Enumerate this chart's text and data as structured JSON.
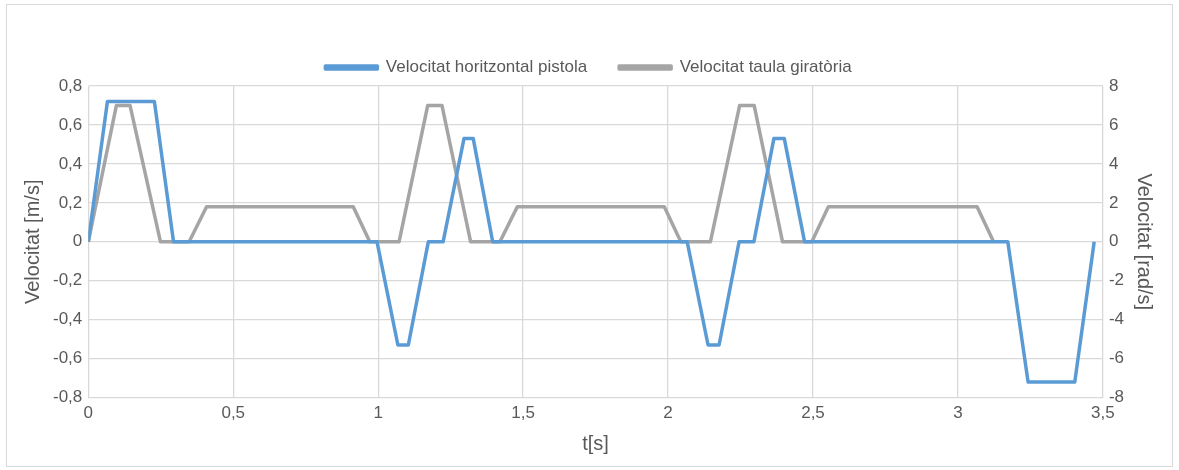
{
  "chart_data": {
    "type": "line",
    "xlabel": "t[s]",
    "ylabel": "Velocitat [m/s]",
    "y2label": "Velocitat [rad/s]",
    "xlim": [
      0,
      3.5
    ],
    "xticks": [
      0,
      {
        "value": 0.5,
        "label": "0,5"
      },
      1,
      {
        "value": 1.5,
        "label": "1,5"
      },
      2,
      {
        "value": 2.5,
        "label": "2,5"
      },
      3,
      {
        "value": 3.5,
        "label": "3,5"
      }
    ],
    "ylim": [
      -0.8,
      0.8
    ],
    "yticks": [
      {
        "value": -0.8,
        "label": "-0,8"
      },
      {
        "value": -0.6,
        "label": "-0,6"
      },
      {
        "value": -0.4,
        "label": "-0,4"
      },
      {
        "value": -0.2,
        "label": "-0,2"
      },
      0,
      {
        "value": 0.2,
        "label": "0,2"
      },
      {
        "value": 0.4,
        "label": "0,4"
      },
      {
        "value": 0.6,
        "label": "0,6"
      },
      {
        "value": 0.8,
        "label": "0,8"
      }
    ],
    "y2lim": [
      -8,
      8
    ],
    "y2ticks": [
      -8,
      -6,
      -4,
      -2,
      0,
      2,
      4,
      6,
      8
    ],
    "grid": true,
    "legend": "top",
    "marker": "none",
    "line_style": "solid",
    "series": [
      {
        "name": "Velocitat horitzontal pistola",
        "color": "#5b9bd5",
        "x": [
          0,
          0.066,
          0.228,
          0.294,
          0.996,
          1.068,
          1.104,
          1.173,
          1.224,
          1.296,
          1.328,
          1.395,
          2.066,
          2.138,
          2.176,
          2.245,
          2.296,
          2.365,
          2.401,
          2.471,
          3.172,
          3.242,
          3.403,
          3.47
        ],
        "values": [
          0,
          0.72,
          0.72,
          0,
          0,
          -0.53,
          -0.53,
          0,
          0,
          0.53,
          0.53,
          0,
          0,
          -0.53,
          -0.53,
          0,
          0,
          0.53,
          0.53,
          0,
          0,
          -0.72,
          -0.72,
          0
        ]
      },
      {
        "name": "Velocitat taula giratòria",
        "color": "#a5a5a5",
        "axis": "y2",
        "x": [
          0,
          0.097,
          0.144,
          0.249,
          0.348,
          0.408,
          0.914,
          0.971,
          1.072,
          1.171,
          1.22,
          1.319,
          1.42,
          1.48,
          1.987,
          2.044,
          2.146,
          2.247,
          2.297,
          2.395,
          2.496,
          2.553,
          3.066,
          3.123
        ],
        "values": [
          0,
          7,
          7,
          0,
          0,
          1.8,
          1.8,
          0,
          0,
          7,
          7,
          0,
          0,
          1.8,
          1.8,
          0,
          0,
          7,
          7,
          0,
          0,
          1.8,
          1.8,
          0
        ]
      }
    ]
  }
}
